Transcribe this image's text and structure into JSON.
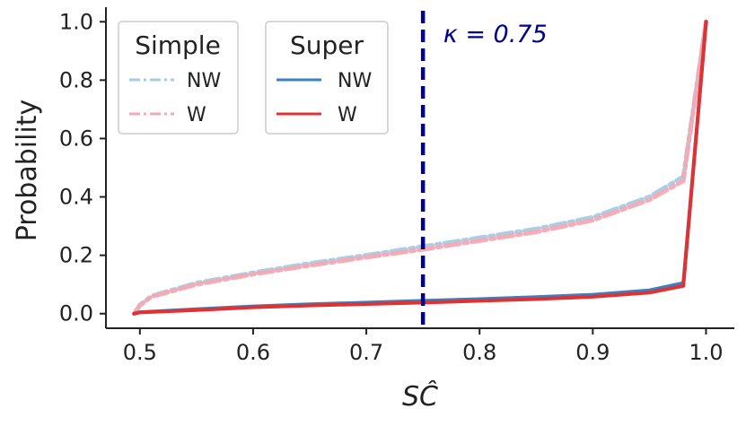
{
  "chart_data": {
    "type": "line",
    "xlabel": "SĈ",
    "ylabel": "Probability",
    "xlim": [
      0.47,
      1.025
    ],
    "ylim": [
      -0.05,
      1.05
    ],
    "x_ticks": [
      "0.5",
      "0.6",
      "0.7",
      "0.8",
      "0.9",
      "1.0"
    ],
    "y_ticks": [
      "0.0",
      "0.2",
      "0.4",
      "0.6",
      "0.8",
      "1.0"
    ],
    "x_tick_values": [
      0.5,
      0.6,
      0.7,
      0.8,
      0.9,
      1.0
    ],
    "y_tick_values": [
      0.0,
      0.2,
      0.4,
      0.6,
      0.8,
      1.0
    ],
    "grid": false,
    "vline": {
      "x": 0.75,
      "color": "#00008b",
      "style": "dashed"
    },
    "annotation": {
      "text": "κ = 0.75",
      "x": 0.768,
      "y": 0.93
    },
    "legends": [
      {
        "title": "Simple",
        "placement": "upper-left",
        "entries": [
          "NW",
          "W"
        ]
      },
      {
        "title": "Super",
        "placement": "upper-left",
        "entries": [
          "NW",
          "W"
        ]
      }
    ],
    "series": [
      {
        "group": "Simple",
        "name": "NW",
        "color": "#a6cbe3",
        "style": "dashdot",
        "x": [
          0.495,
          0.5,
          0.51,
          0.55,
          0.6,
          0.65,
          0.7,
          0.75,
          0.8,
          0.85,
          0.9,
          0.95,
          0.98,
          1.0
        ],
        "y": [
          0.0,
          0.03,
          0.06,
          0.105,
          0.14,
          0.172,
          0.2,
          0.23,
          0.26,
          0.29,
          0.33,
          0.4,
          0.47,
          1.0
        ]
      },
      {
        "group": "Simple",
        "name": "W",
        "color": "#f4a9b4",
        "style": "dashdot",
        "x": [
          0.495,
          0.5,
          0.51,
          0.55,
          0.6,
          0.65,
          0.7,
          0.75,
          0.8,
          0.85,
          0.9,
          0.95,
          0.98,
          1.0
        ],
        "y": [
          0.0,
          0.028,
          0.058,
          0.1,
          0.135,
          0.165,
          0.193,
          0.22,
          0.25,
          0.28,
          0.32,
          0.39,
          0.455,
          1.0
        ]
      },
      {
        "group": "Super",
        "name": "NW",
        "color": "#3a80c2",
        "style": "solid",
        "x": [
          0.495,
          0.5,
          0.55,
          0.6,
          0.65,
          0.7,
          0.75,
          0.8,
          0.85,
          0.9,
          0.95,
          0.98,
          1.0
        ],
        "y": [
          0.0,
          0.005,
          0.015,
          0.025,
          0.032,
          0.038,
          0.044,
          0.05,
          0.057,
          0.065,
          0.08,
          0.105,
          1.0
        ]
      },
      {
        "group": "Super",
        "name": "W",
        "color": "#e03232",
        "style": "solid",
        "x": [
          0.495,
          0.5,
          0.55,
          0.6,
          0.65,
          0.7,
          0.75,
          0.8,
          0.85,
          0.9,
          0.95,
          0.98,
          1.0
        ],
        "y": [
          0.0,
          0.004,
          0.012,
          0.022,
          0.028,
          0.033,
          0.038,
          0.044,
          0.05,
          0.058,
          0.072,
          0.095,
          1.0
        ]
      }
    ]
  }
}
